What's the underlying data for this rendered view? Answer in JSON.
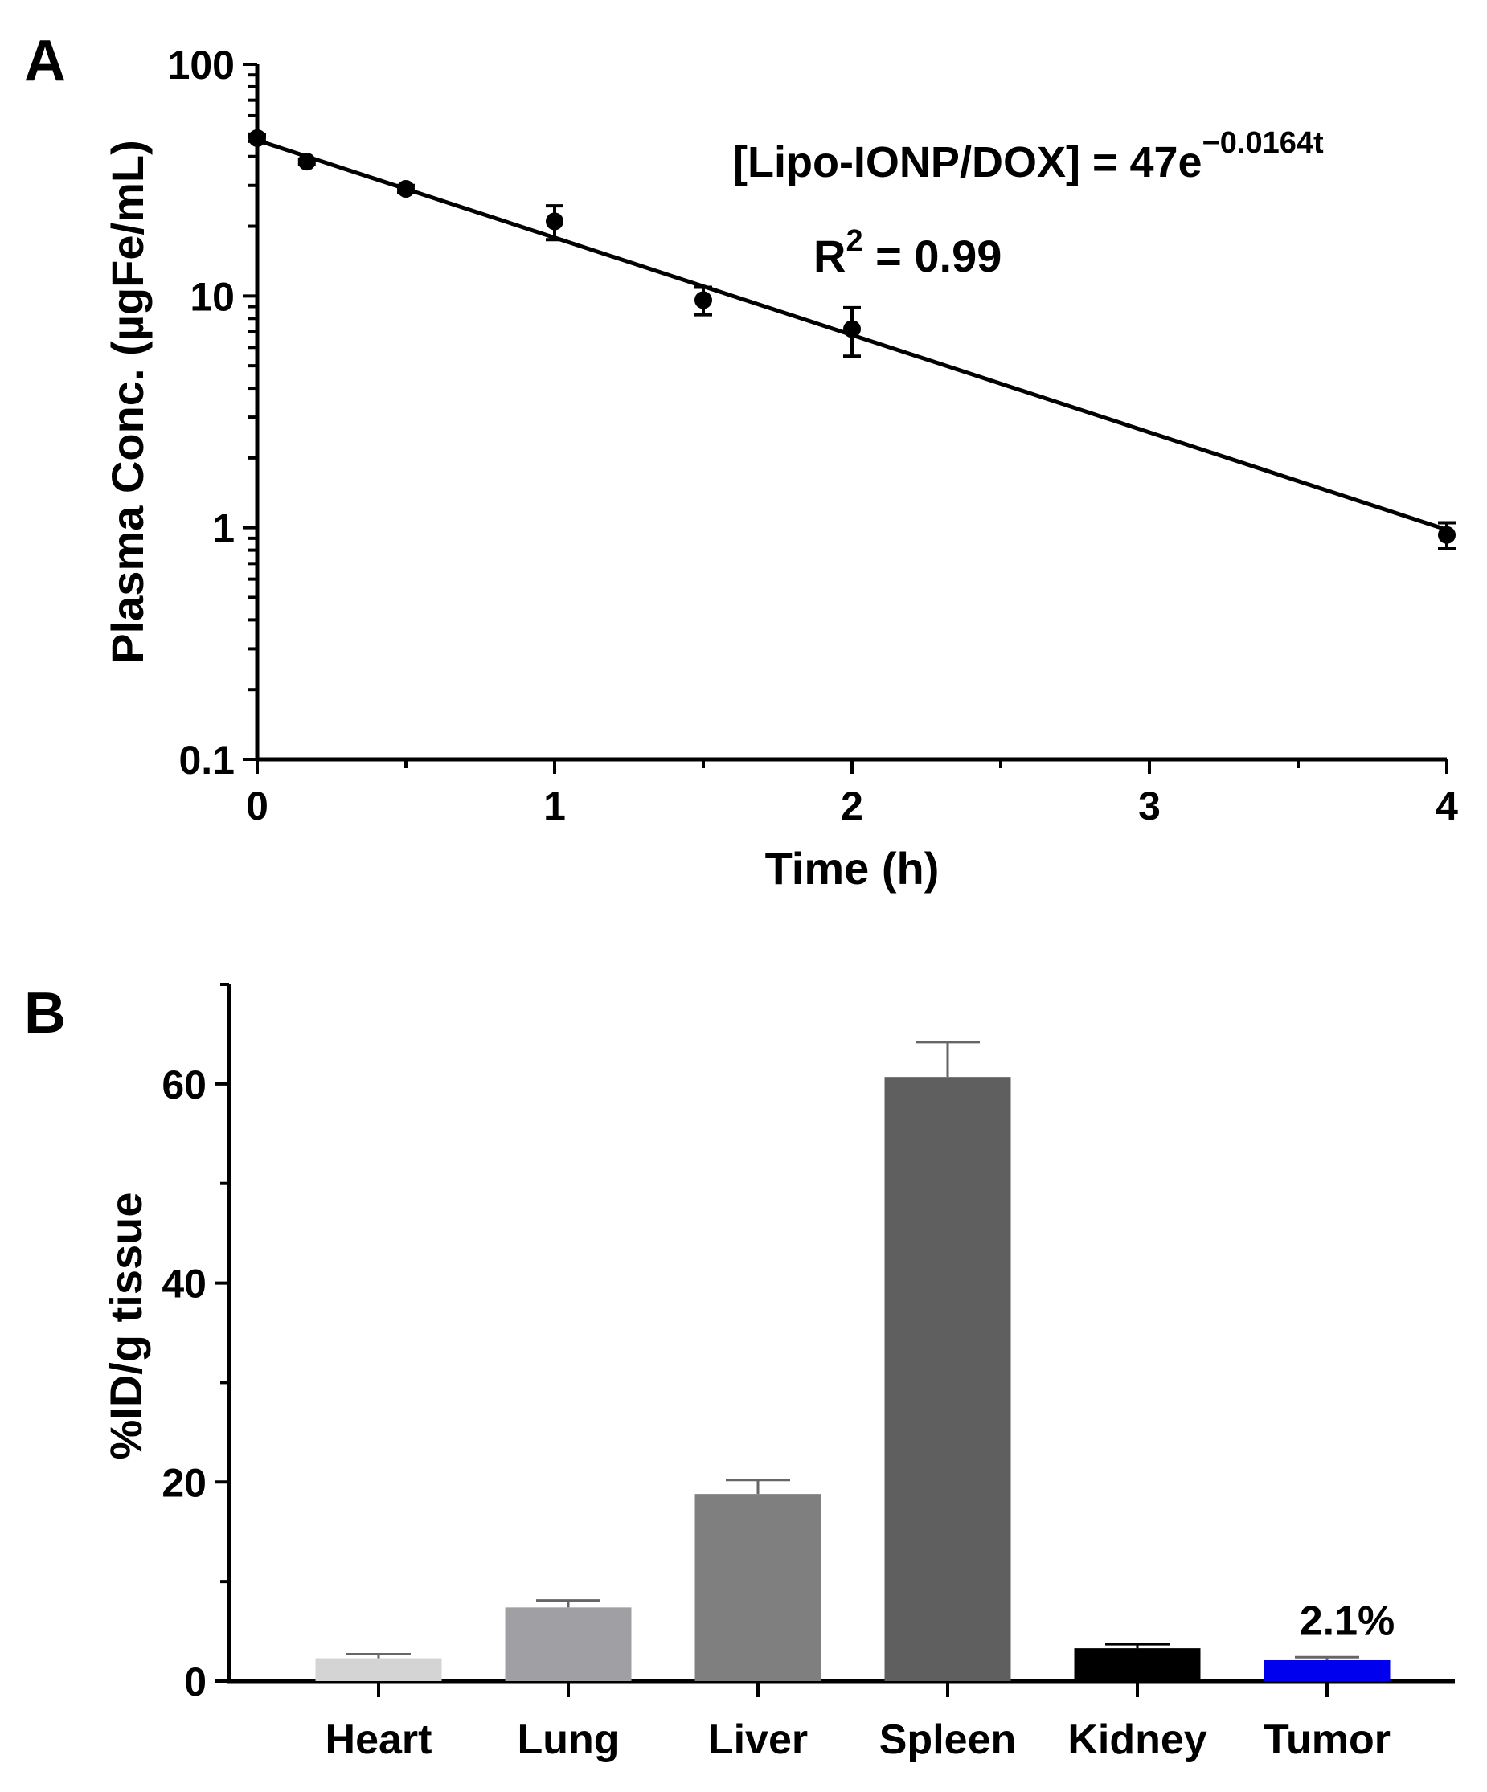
{
  "chart_data": [
    {
      "panel_label": "A",
      "type": "scatter",
      "xlabel": "Time (h)",
      "ylabel": "Plasma Conc.  (µgFe/mL)",
      "xlim": [
        0,
        4
      ],
      "ylim": [
        0.1,
        100
      ],
      "y_scale": "log",
      "x_ticks": [
        "0",
        "1",
        "2",
        "3",
        "4"
      ],
      "y_ticks": [
        "0.1",
        "1",
        "10",
        "100"
      ],
      "points": [
        {
          "x": 0,
          "y": 48,
          "err": 1.5
        },
        {
          "x": 0.167,
          "y": 38,
          "err": 1.0
        },
        {
          "x": 0.5,
          "y": 29,
          "err": 1.0
        },
        {
          "x": 1,
          "y": 21,
          "err": 3.5
        },
        {
          "x": 1.5,
          "y": 9.6,
          "err": 1.3
        },
        {
          "x": 2,
          "y": 7.2,
          "err": 1.7
        },
        {
          "x": 4,
          "y": 0.93,
          "err": 0.12
        }
      ],
      "fit_line": {
        "x": [
          0,
          4
        ],
        "y": [
          47,
          0.98
        ]
      },
      "annotation": {
        "equation_base": "[Lipo-IONP/DOX] = 47e",
        "equation_exp": "−0.0164t",
        "r2_prefix": "R",
        "r2_sup": "2",
        "r2_value": " = 0.99"
      },
      "colors": {
        "marker": "#000000",
        "line": "#000000"
      }
    },
    {
      "panel_label": "B",
      "type": "bar",
      "ylabel": "%ID/g tissue",
      "ylim": [
        0,
        70
      ],
      "y_ticks": [
        "0",
        "20",
        "40",
        "60"
      ],
      "categories": [
        "Heart",
        "Lung",
        "Liver",
        "Spleen",
        "Kidney",
        "Tumor"
      ],
      "values": [
        2.3,
        7.4,
        18.8,
        60.7,
        3.3,
        2.1
      ],
      "errors": [
        0.4,
        0.7,
        1.4,
        3.5,
        0.4,
        0.3
      ],
      "bar_colors": [
        "#d4d4d4",
        "#a0a0a4",
        "#7f7f7f",
        "#5f5f5f",
        "#000000",
        "#0000ee"
      ],
      "annotation": {
        "category": "Tumor",
        "text": "2.1%"
      }
    }
  ]
}
